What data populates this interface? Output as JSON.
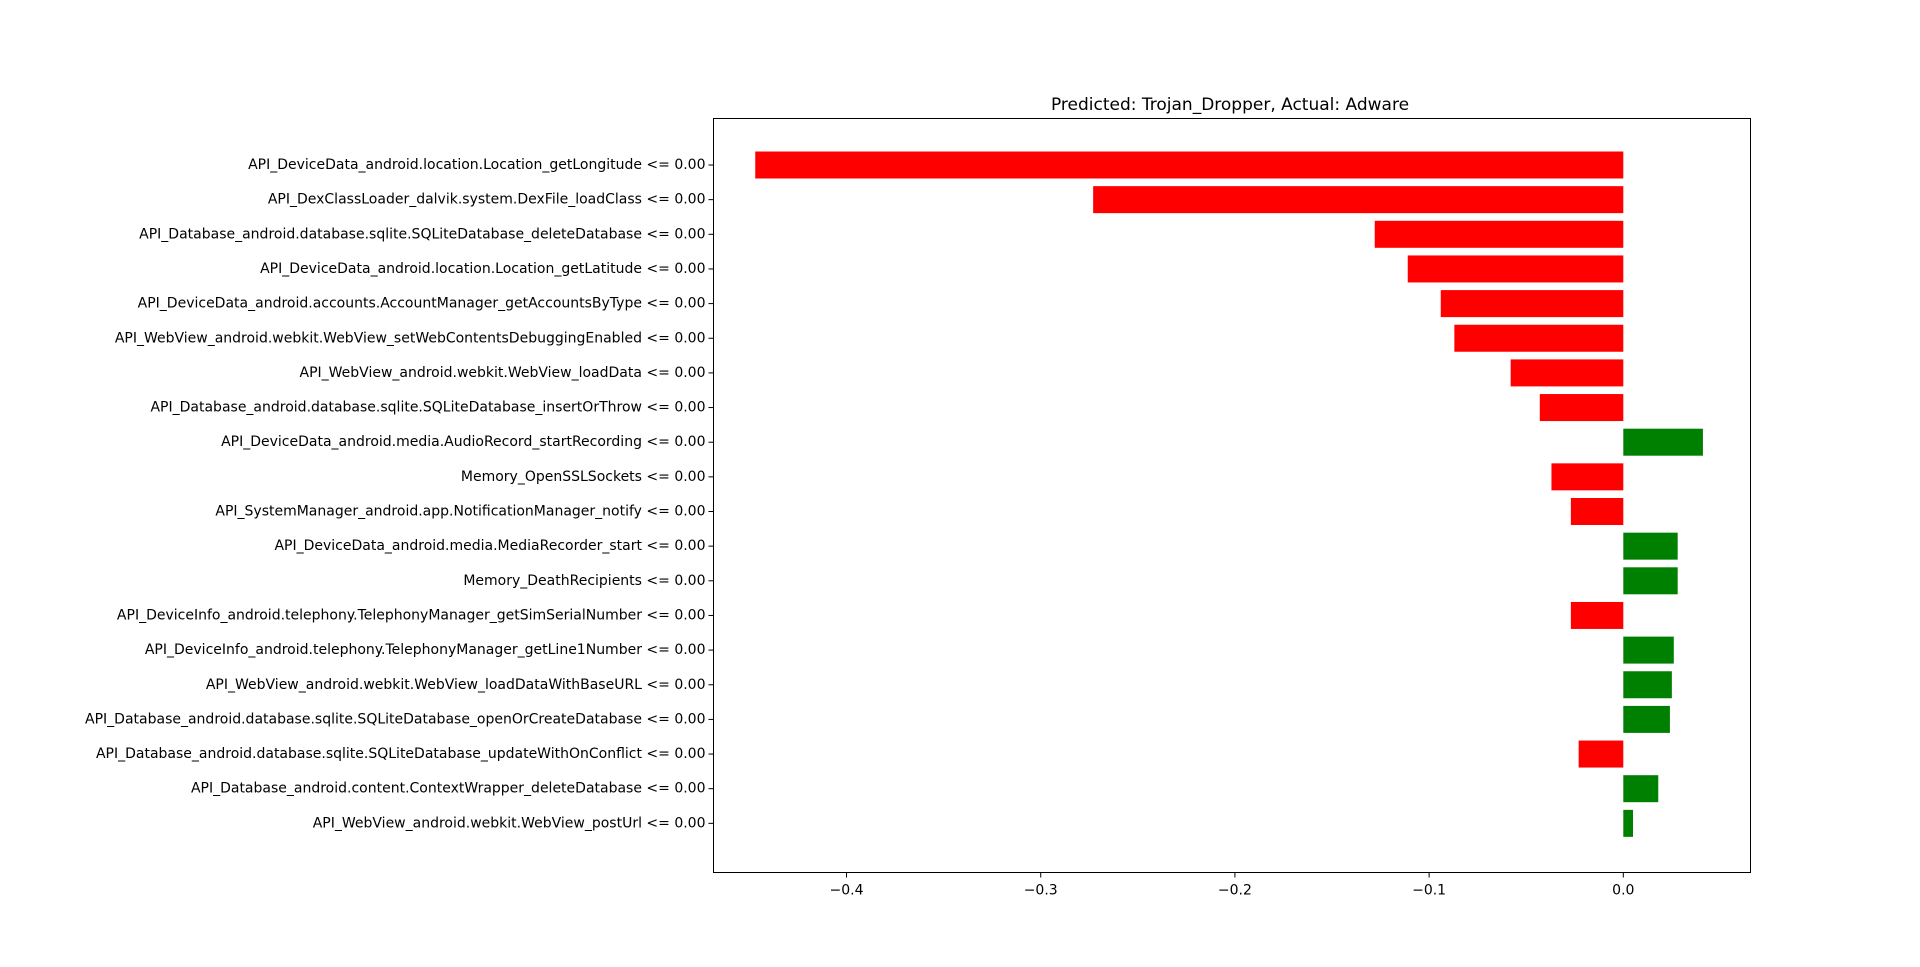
{
  "chart_data": {
    "type": "bar",
    "orientation": "horizontal",
    "title": "Predicted: Trojan_Dropper, Actual: Adware",
    "xlabel": "",
    "ylabel": "",
    "xlim": [
      -0.4685,
      0.0655
    ],
    "xticks": [
      -0.4,
      -0.3,
      -0.2,
      -0.1,
      0.0
    ],
    "xtick_labels": [
      "−0.4",
      "−0.3",
      "−0.2",
      "−0.1",
      "0.0"
    ],
    "grid": false,
    "colors": {
      "negative": "#ff0000",
      "positive": "#008000"
    },
    "categories": [
      "API_DeviceData_android.location.Location_getLongitude <= 0.00",
      "API_DexClassLoader_dalvik.system.DexFile_loadClass <= 0.00",
      "API_Database_android.database.sqlite.SQLiteDatabase_deleteDatabase <= 0.00",
      "API_DeviceData_android.location.Location_getLatitude <= 0.00",
      "API_DeviceData_android.accounts.AccountManager_getAccountsByType <= 0.00",
      "API_WebView_android.webkit.WebView_setWebContentsDebuggingEnabled <= 0.00",
      "API_WebView_android.webkit.WebView_loadData <= 0.00",
      "API_Database_android.database.sqlite.SQLiteDatabase_insertOrThrow <= 0.00",
      "API_DeviceData_android.media.AudioRecord_startRecording <= 0.00",
      "Memory_OpenSSLSockets <= 0.00",
      "API_SystemManager_android.app.NotificationManager_notify <= 0.00",
      "API_DeviceData_android.media.MediaRecorder_start <= 0.00",
      "Memory_DeathRecipients <= 0.00",
      "API_DeviceInfo_android.telephony.TelephonyManager_getSimSerialNumber <= 0.00",
      "API_DeviceInfo_android.telephony.TelephonyManager_getLine1Number <= 0.00",
      "API_WebView_android.webkit.WebView_loadDataWithBaseURL <= 0.00",
      "API_Database_android.database.sqlite.SQLiteDatabase_openOrCreateDatabase <= 0.00",
      "API_Database_android.database.sqlite.SQLiteDatabase_updateWithOnConflict <= 0.00",
      "API_Database_android.content.ContextWrapper_deleteDatabase <= 0.00",
      "API_WebView_android.webkit.WebView_postUrl <= 0.00"
    ],
    "values": [
      -0.447,
      -0.273,
      -0.128,
      -0.111,
      -0.094,
      -0.087,
      -0.058,
      -0.043,
      0.041,
      -0.037,
      -0.027,
      0.028,
      0.028,
      -0.027,
      0.026,
      0.025,
      0.024,
      -0.023,
      0.018,
      0.005
    ]
  }
}
